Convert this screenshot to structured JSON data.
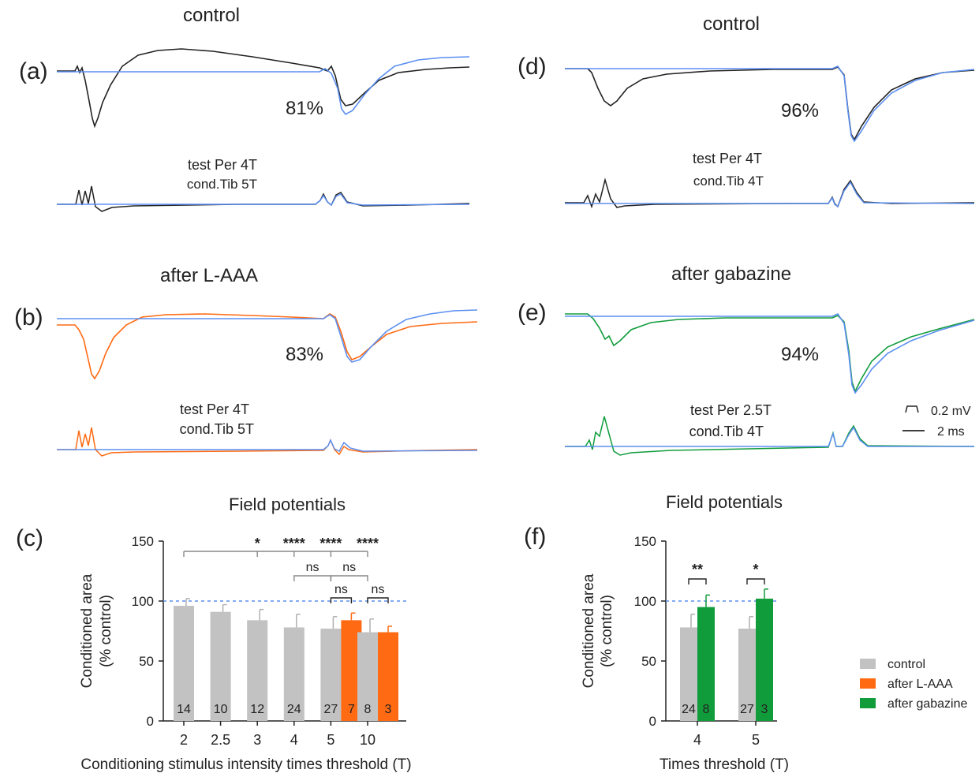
{
  "colors": {
    "test": "#5b8ff0",
    "control_trace": "#222222",
    "laaa": "#ff6a13",
    "gabazine": "#119c3c",
    "bar_control": "#c2c2c2",
    "dash": "#5b8ff0"
  },
  "panels": {
    "a": {
      "label": "(a)",
      "title": "control",
      "pct": "81%",
      "test_label": "test Per 4T",
      "cond_label": "cond.Tib 5T"
    },
    "b": {
      "label": "(b)",
      "title": "after L-AAA",
      "pct": "83%",
      "test_label": "test Per 4T",
      "cond_label": "cond.Tib 5T"
    },
    "d": {
      "label": "(d)",
      "title": "control",
      "pct": "96%",
      "test_label": "test Per 4T",
      "cond_label": "cond.Tib 4T"
    },
    "e": {
      "label": "(e)",
      "title": "after gabazine",
      "pct": "94%",
      "test_label": "test Per 2.5T",
      "cond_label": "cond.Tib 4T"
    }
  },
  "scale_bar": {
    "voltage": "0.2 mV",
    "time": "2 ms"
  },
  "chart_data": [
    {
      "type": "bar",
      "panel_label": "(c)",
      "title": "Field potentials",
      "xlabel": "Conditioning stimulus intensity times threshold (T)",
      "ylabel_line1": "Conditioned area",
      "ylabel_line2": "(% control)",
      "ylim": [
        0,
        150
      ],
      "yticks": [
        0,
        50,
        100,
        150
      ],
      "reference_line": 100,
      "categories": [
        "2",
        "2.5",
        "3",
        "4",
        "5",
        "10"
      ],
      "series": [
        {
          "name": "control",
          "values": [
            96,
            91,
            84,
            78,
            77,
            74
          ],
          "errors": [
            6,
            6,
            9,
            11,
            10,
            11
          ],
          "n": [
            "14",
            "10",
            "12",
            "24",
            "27",
            "8"
          ]
        },
        {
          "name": "after L-AAA",
          "values": [
            null,
            null,
            null,
            null,
            84,
            74
          ],
          "errors": [
            null,
            null,
            null,
            null,
            6,
            5
          ],
          "n": [
            null,
            null,
            null,
            null,
            "7",
            "3"
          ]
        }
      ],
      "significance": {
        "top": [
          {
            "category": "3",
            "mark": "*"
          },
          {
            "category": "4",
            "mark": "****"
          },
          {
            "category": "5",
            "mark": "****"
          },
          {
            "category": "10",
            "mark": "****"
          }
        ],
        "between_categories": [
          {
            "from": "4",
            "to": "5",
            "mark": "ns"
          },
          {
            "from": "5",
            "to": "10",
            "mark": "ns"
          }
        ],
        "within_category": [
          {
            "category": "5",
            "mark": "ns"
          },
          {
            "category": "10",
            "mark": "ns"
          }
        ]
      }
    },
    {
      "type": "bar",
      "panel_label": "(f)",
      "title": "Field potentials",
      "xlabel": "Times threshold (T)",
      "ylabel_line1": "Conditioned area",
      "ylabel_line2": "(% control)",
      "ylim": [
        0,
        150
      ],
      "yticks": [
        0,
        50,
        100,
        150
      ],
      "reference_line": 100,
      "categories": [
        "4",
        "5"
      ],
      "series": [
        {
          "name": "control",
          "values": [
            78,
            77
          ],
          "errors": [
            11,
            10
          ],
          "n": [
            "24",
            "27"
          ]
        },
        {
          "name": "after gabazine",
          "values": [
            95,
            102
          ],
          "errors": [
            10,
            8
          ],
          "n": [
            "8",
            "3"
          ]
        }
      ],
      "significance": {
        "within_category": [
          {
            "category": "4",
            "mark": "**"
          },
          {
            "category": "5",
            "mark": "*"
          }
        ]
      }
    }
  ],
  "legend": [
    {
      "label": "control",
      "color": "#c2c2c2"
    },
    {
      "label": "after L-AAA",
      "color": "#ff6a13"
    },
    {
      "label": "after gabazine",
      "color": "#119c3c"
    }
  ]
}
